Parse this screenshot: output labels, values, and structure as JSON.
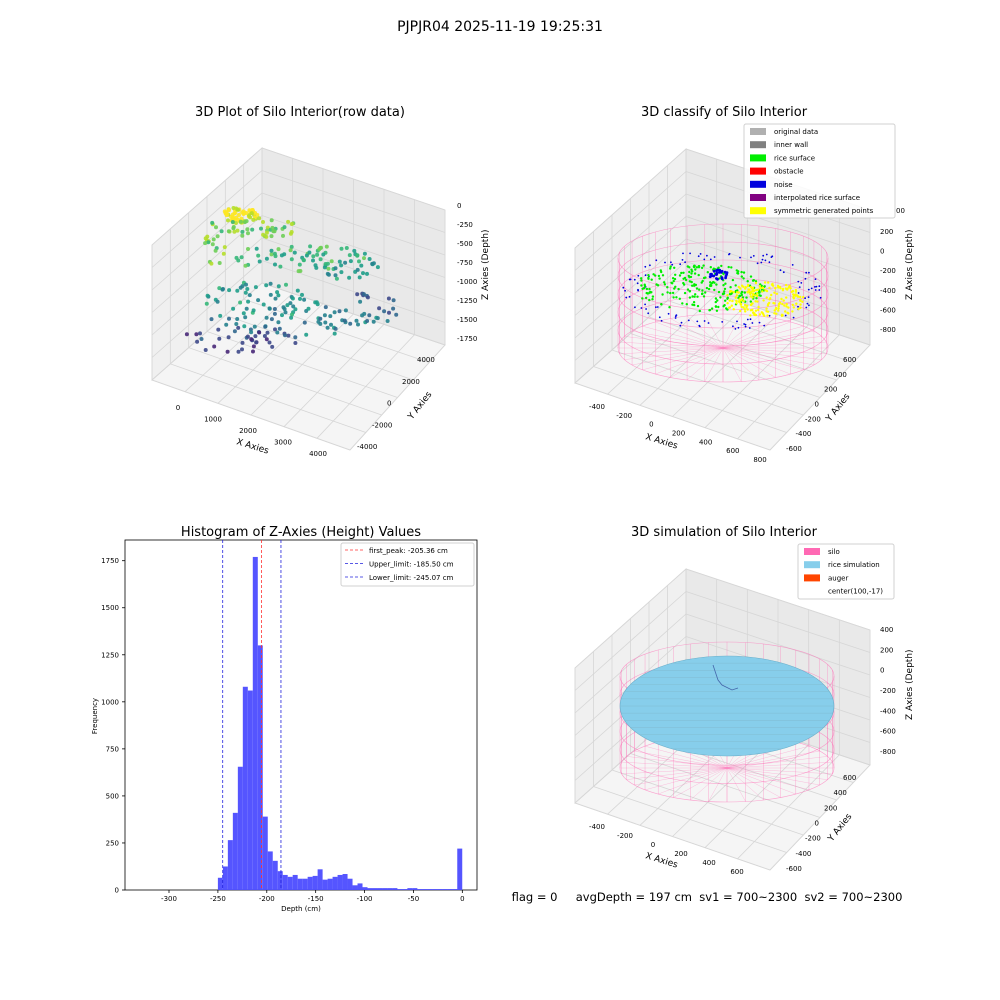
{
  "suptitle": "PJPJR04 2025-11-19 19:25:31",
  "footer_text": "flag = 0     avgDepth = 197 cm  sv1 = 700~2300  sv2 = 700~2300",
  "colors": {
    "hist_bar": "#4c4cff",
    "peak_line": "#ff3333",
    "limit_line": "#2222dd",
    "silo": "#ff69b4",
    "rice_sim": "#87ceeb",
    "auger": "#ff4500",
    "original": "#b0b0b0",
    "inner_wall": "#808080",
    "rice_surface": "#00ee00",
    "obstacle": "#ff0000",
    "noise": "#0000dd",
    "interp": "#800080",
    "symmetric": "#ffff00"
  },
  "chart_data": [
    {
      "type": "scatter",
      "title": "3D Plot of Silo Interior(row data)",
      "xlabel": "X Axies",
      "ylabel": "Y Axies",
      "zlabel": "Z Axies (Depth)",
      "x_ticks": [
        "0",
        "1000",
        "2000",
        "3000",
        "4000"
      ],
      "y_ticks": [
        "-4000",
        "-2000",
        "0",
        "2000",
        "4000"
      ],
      "z_ticks": [
        "0",
        "-250",
        "-500",
        "-750",
        "-1000",
        "-1250",
        "-1500",
        "-1750"
      ],
      "zlim": [
        -1900,
        100
      ],
      "colormap": "viridis"
    },
    {
      "type": "scatter",
      "title": "3D classify of Silo Interior",
      "xlabel": "X Axies",
      "ylabel": "Y Axies",
      "zlabel": "Z Axies (Depth)",
      "x_ticks": [
        "-400",
        "-200",
        "0",
        "200",
        "400",
        "600",
        "800"
      ],
      "y_ticks": [
        "-600",
        "-400",
        "-200",
        "0",
        "200",
        "400",
        "600"
      ],
      "z_ticks": [
        "200",
        "0",
        "-200",
        "-400",
        "-600",
        "-800"
      ],
      "legend_position": "top-right",
      "legend": [
        {
          "label": "original data",
          "color": "#b0b0b0"
        },
        {
          "label": "inner wall",
          "color": "#808080"
        },
        {
          "label": "rice surface",
          "color": "#00ee00"
        },
        {
          "label": "obstacle",
          "color": "#ff0000"
        },
        {
          "label": "noise",
          "color": "#0000dd"
        },
        {
          "label": "interpolated rice surface",
          "color": "#800080"
        },
        {
          "label": "symmetric generated points",
          "color": "#ffff00"
        }
      ],
      "z_tick_partial": "00"
    },
    {
      "type": "bar",
      "title": "Histogram of Z-Axies (Height) Values",
      "xlabel": "Depth (cm)",
      "ylabel": "Frequency",
      "xlim": [
        -345,
        15
      ],
      "ylim": [
        0,
        1860
      ],
      "x_ticks": [
        -300,
        -250,
        -200,
        -150,
        -100,
        -50,
        0
      ],
      "y_ticks": [
        0,
        250,
        500,
        750,
        1000,
        1250,
        1500,
        1750
      ],
      "bin_start": -250,
      "bin_width": 5.1,
      "values": [
        65,
        125,
        265,
        410,
        655,
        1080,
        1060,
        1770,
        1300,
        390,
        205,
        155,
        100,
        80,
        70,
        80,
        60,
        60,
        70,
        75,
        110,
        55,
        60,
        70,
        80,
        85,
        60,
        25,
        35,
        15,
        10,
        10,
        10,
        10,
        10,
        10,
        5,
        5,
        10,
        10,
        5,
        5,
        5,
        5,
        5,
        5,
        5,
        5,
        220
      ],
      "vlines": [
        {
          "label": "first_peak: -205.36 cm",
          "x": -205.36,
          "color": "#ff3333"
        },
        {
          "label": "Upper_limit: -185.50 cm",
          "x": -185.5,
          "color": "#2222dd"
        },
        {
          "label": "Lower_limit: -245.07 cm",
          "x": -245.07,
          "color": "#2222dd"
        }
      ],
      "legend_position": "top-right"
    },
    {
      "type": "scatter",
      "title": "3D simulation of Silo Interior",
      "xlabel": "X Axies",
      "ylabel": "Y Axies",
      "zlabel": "Z Axies (Depth)",
      "x_ticks": [
        "-400",
        "-200",
        "0",
        "200",
        "400",
        "600"
      ],
      "y_ticks": [
        "-600",
        "-400",
        "-200",
        "0",
        "200",
        "400",
        "600"
      ],
      "z_ticks": [
        "400",
        "200",
        "0",
        "-200",
        "-400",
        "-600",
        "-800"
      ],
      "legend_position": "top-right",
      "legend": [
        {
          "label": "silo",
          "color": "#ff69b4"
        },
        {
          "label": "rice simulation",
          "color": "#87ceeb"
        },
        {
          "label": "auger",
          "color": "#ff4500"
        },
        {
          "label": "center(100,-17)",
          "color": ""
        }
      ]
    }
  ]
}
